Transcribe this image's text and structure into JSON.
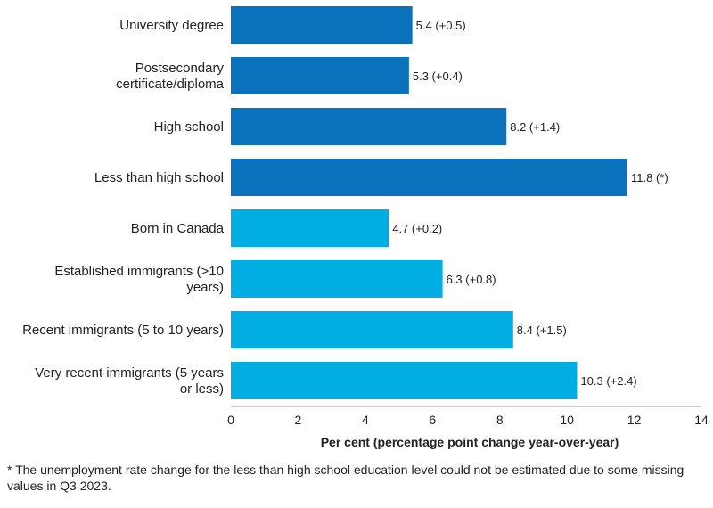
{
  "chart_data": {
    "type": "bar",
    "orientation": "horizontal",
    "title": "",
    "xlabel": "Per cent (percentage point change year-over-year)",
    "ylabel": "",
    "xlim": [
      0,
      14
    ],
    "xticks": [
      0,
      2,
      4,
      6,
      8,
      10,
      12,
      14
    ],
    "grid": false,
    "categories": [
      "University degree",
      "Postsecondary certificate/diploma",
      "High school",
      "Less than high school",
      "Born in Canada",
      "Established immigrants (>10 years)",
      "Recent immigrants (5 to 10 years)",
      "Very recent immigrants (5 years or less)"
    ],
    "category_lines": [
      [
        "University degree"
      ],
      [
        "Postsecondary",
        "certificate/diploma"
      ],
      [
        "High school"
      ],
      [
        "Less than high school"
      ],
      [
        "Born in Canada"
      ],
      [
        "Established immigrants (>10",
        "years)"
      ],
      [
        "Recent immigrants (5 to 10 years)"
      ],
      [
        "Very recent immigrants (5 years",
        "or less)"
      ]
    ],
    "values": [
      5.4,
      5.3,
      8.2,
      11.8,
      4.7,
      6.3,
      8.4,
      10.3
    ],
    "data_labels": [
      "5.4 (+0.5)",
      "5.3 (+0.4)",
      "8.2 (+1.4)",
      "11.8 (*)",
      "4.7 (+0.2)",
      "6.3 (+0.8)",
      "8.4 (+1.5)",
      "10.3 (+2.4)"
    ],
    "groups": [
      "education",
      "education",
      "education",
      "education",
      "immigration",
      "immigration",
      "immigration",
      "immigration"
    ],
    "colors": {
      "education": "#0a72bd",
      "immigration": "#00aee4",
      "axis": "#999999"
    }
  },
  "footnote": "* The unemployment rate change for the less than high school education level could not be estimated due to some missing values in Q3 2023."
}
